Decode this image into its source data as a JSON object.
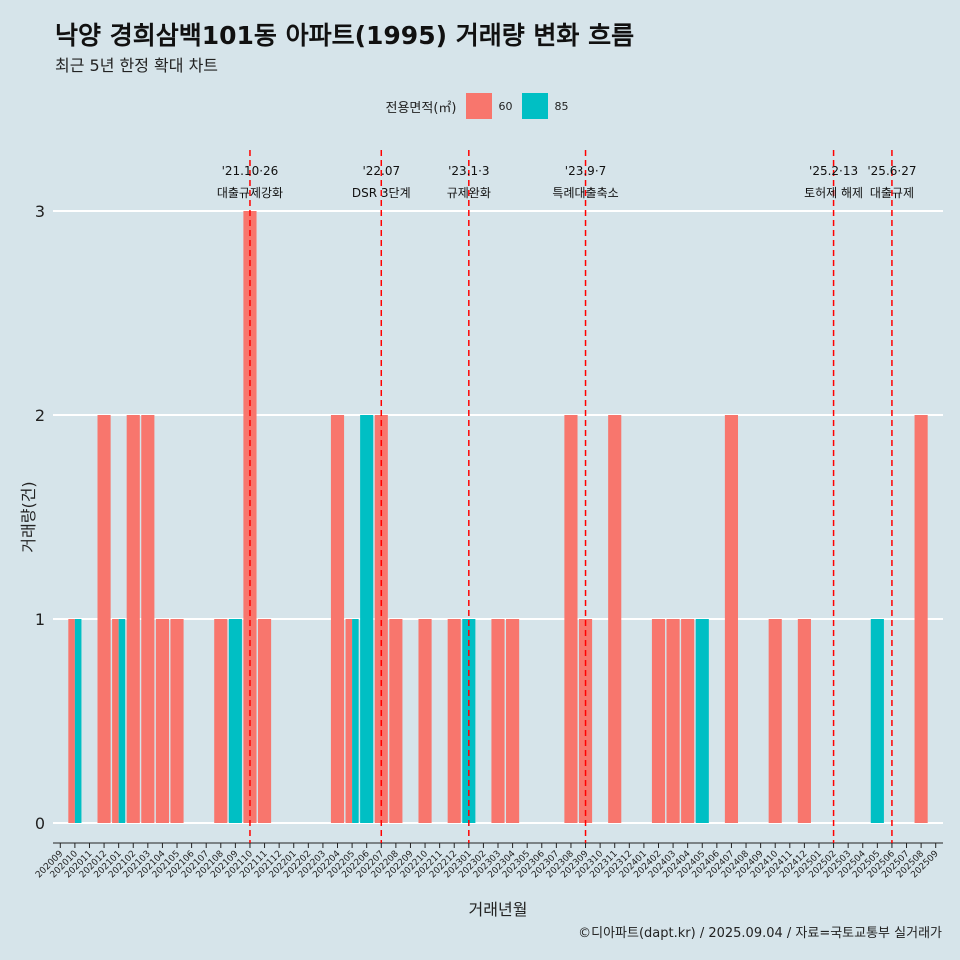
{
  "chart_data": {
    "type": "bar",
    "title": "낙양 경희삼백101동 아파트(1995) 거래량 변화 흐름",
    "subtitle": "최근 5년 한정 확대 차트",
    "xlabel": "거래년월",
    "ylabel": "거래량(건)",
    "caption": "©디아파트(dapt.kr) / 2025.09.04 / 자료=국토교통부 실거래가",
    "legend": {
      "title": "전용면적(㎡)",
      "position": "top"
    },
    "ylim": [
      0,
      3
    ],
    "yticks": [
      "0",
      "1",
      "2",
      "3"
    ],
    "grid": true,
    "categories": [
      "202009",
      "202010",
      "202011",
      "202012",
      "202101",
      "202102",
      "202103",
      "202104",
      "202105",
      "202106",
      "202107",
      "202108",
      "202109",
      "202110",
      "202111",
      "202112",
      "202201",
      "202202",
      "202203",
      "202204",
      "202205",
      "202206",
      "202207",
      "202208",
      "202209",
      "202210",
      "202211",
      "202212",
      "202301",
      "202302",
      "202303",
      "202304",
      "202305",
      "202306",
      "202307",
      "202308",
      "202309",
      "202310",
      "202311",
      "202312",
      "202401",
      "202402",
      "202403",
      "202404",
      "202405",
      "202406",
      "202407",
      "202408",
      "202409",
      "202410",
      "202411",
      "202412",
      "202501",
      "202502",
      "202503",
      "202504",
      "202505",
      "202506",
      "202507",
      "202508",
      "202509"
    ],
    "series": [
      {
        "name": "60",
        "color": "#f8766d",
        "values": [
          0,
          1,
          0,
          2,
          1,
          2,
          2,
          1,
          1,
          0,
          0,
          1,
          0,
          3,
          1,
          0,
          0,
          0,
          0,
          2,
          1,
          0,
          2,
          1,
          0,
          1,
          0,
          1,
          0,
          0,
          1,
          1,
          0,
          0,
          0,
          2,
          1,
          0,
          2,
          0,
          0,
          1,
          1,
          1,
          0,
          0,
          2,
          0,
          0,
          1,
          0,
          1,
          0,
          0,
          0,
          0,
          0,
          0,
          0,
          2,
          0
        ]
      },
      {
        "name": "85",
        "color": "#00bfc4",
        "values": [
          0,
          1,
          0,
          0,
          1,
          0,
          0,
          0,
          0,
          0,
          0,
          0,
          1,
          0,
          0,
          0,
          0,
          0,
          0,
          0,
          1,
          2,
          0,
          0,
          0,
          0,
          0,
          0,
          1,
          0,
          0,
          0,
          0,
          0,
          0,
          0,
          0,
          0,
          0,
          0,
          0,
          0,
          0,
          0,
          1,
          0,
          0,
          0,
          0,
          0,
          0,
          0,
          0,
          0,
          0,
          0,
          1,
          0,
          0,
          0,
          0
        ]
      }
    ],
    "annotations": [
      {
        "date": "202110",
        "line1": "'21.10·26",
        "line2": "대출규제강화"
      },
      {
        "date": "202207",
        "line1": "'22.07",
        "line2": "DSR 3단계"
      },
      {
        "date": "202301",
        "line1": "'23.1·3",
        "line2": "규제완화"
      },
      {
        "date": "202309",
        "line1": "'23.9·7",
        "line2": "특례대출축소"
      },
      {
        "date": "202502",
        "line1": "'25.2·13",
        "line2": "토허제 해제"
      },
      {
        "date": "202506",
        "line1": "'25.6·27",
        "line2": "대출규제"
      }
    ],
    "annotation_color": "#ff0000"
  }
}
